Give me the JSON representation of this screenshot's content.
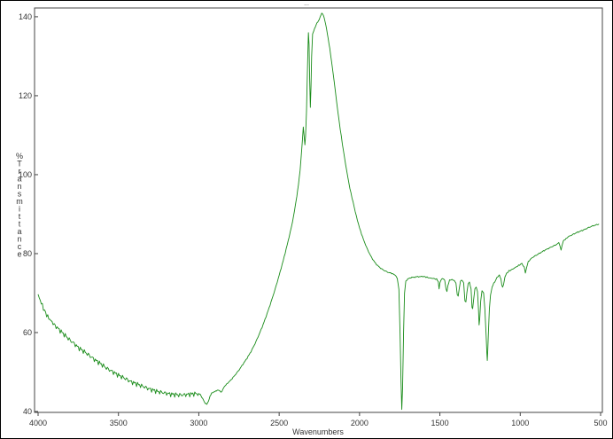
{
  "header": {
    "text": "..."
  },
  "chart_data": {
    "type": "line",
    "title": "",
    "xlabel": "Wavenumbers",
    "ylabel": "%Transmittance",
    "xlim": [
      4000,
      500
    ],
    "ylim": [
      40,
      142
    ],
    "x_ticks": [
      4000,
      3500,
      3000,
      2500,
      2000,
      1500,
      1000,
      500
    ],
    "y_ticks": [
      40,
      60,
      80,
      100,
      120,
      140
    ],
    "grid": false,
    "legend": "none",
    "series": [
      {
        "color": "#1a8c1a",
        "points": [
          [
            4000,
            69.5
          ],
          [
            3980,
            67.5
          ],
          [
            3960,
            65.5
          ],
          [
            3940,
            64.0
          ],
          [
            3920,
            63.0
          ],
          [
            3900,
            62.0
          ],
          [
            3875,
            61.0
          ],
          [
            3850,
            60.0
          ],
          [
            3825,
            59.0
          ],
          [
            3800,
            58.0
          ],
          [
            3775,
            57.2
          ],
          [
            3750,
            56.2
          ],
          [
            3725,
            55.5
          ],
          [
            3700,
            54.8
          ],
          [
            3675,
            54.0
          ],
          [
            3650,
            53.2
          ],
          [
            3625,
            52.5
          ],
          [
            3600,
            51.8
          ],
          [
            3575,
            51.0
          ],
          [
            3550,
            50.4
          ],
          [
            3525,
            49.8
          ],
          [
            3500,
            49.2
          ],
          [
            3475,
            48.7
          ],
          [
            3450,
            48.2
          ],
          [
            3425,
            47.6
          ],
          [
            3400,
            47.2
          ],
          [
            3375,
            46.8
          ],
          [
            3350,
            46.4
          ],
          [
            3325,
            46.0
          ],
          [
            3300,
            45.6
          ],
          [
            3275,
            45.3
          ],
          [
            3250,
            45.0
          ],
          [
            3225,
            44.8
          ],
          [
            3200,
            44.6
          ],
          [
            3175,
            44.4
          ],
          [
            3150,
            44.3
          ],
          [
            3125,
            44.2
          ],
          [
            3100,
            44.2
          ],
          [
            3075,
            44.3
          ],
          [
            3050,
            44.4
          ],
          [
            3025,
            44.5
          ],
          [
            3000,
            44.5
          ],
          [
            2990,
            44.2
          ],
          [
            2975,
            43.2
          ],
          [
            2960,
            42.0
          ],
          [
            2950,
            41.8
          ],
          [
            2940,
            42.5
          ],
          [
            2930,
            43.8
          ],
          [
            2920,
            44.6
          ],
          [
            2910,
            44.8
          ],
          [
            2900,
            45.0
          ],
          [
            2890,
            45.2
          ],
          [
            2880,
            45.4
          ],
          [
            2870,
            45.2
          ],
          [
            2860,
            44.8
          ],
          [
            2850,
            45.6
          ],
          [
            2840,
            46.4
          ],
          [
            2820,
            47.2
          ],
          [
            2800,
            48.0
          ],
          [
            2775,
            49.2
          ],
          [
            2750,
            50.5
          ],
          [
            2725,
            52.0
          ],
          [
            2700,
            53.5
          ],
          [
            2675,
            55.2
          ],
          [
            2650,
            57.2
          ],
          [
            2625,
            59.5
          ],
          [
            2600,
            62.0
          ],
          [
            2575,
            64.8
          ],
          [
            2550,
            67.8
          ],
          [
            2525,
            71.0
          ],
          [
            2500,
            74.5
          ],
          [
            2475,
            78.2
          ],
          [
            2450,
            82.2
          ],
          [
            2425,
            86.5
          ],
          [
            2410,
            89.5
          ],
          [
            2400,
            92.0
          ],
          [
            2390,
            94.5
          ],
          [
            2380,
            97.5
          ],
          [
            2370,
            101.0
          ],
          [
            2362,
            105.0
          ],
          [
            2355,
            109.0
          ],
          [
            2350,
            112.0
          ],
          [
            2345,
            110.0
          ],
          [
            2340,
            107.5
          ],
          [
            2336,
            109.5
          ],
          [
            2330,
            116.0
          ],
          [
            2326,
            123.0
          ],
          [
            2322,
            130.0
          ],
          [
            2318,
            136.0
          ],
          [
            2314,
            133.0
          ],
          [
            2310,
            124.0
          ],
          [
            2306,
            117.0
          ],
          [
            2302,
            122.0
          ],
          [
            2298,
            130.0
          ],
          [
            2292,
            135.5
          ],
          [
            2285,
            136.5
          ],
          [
            2275,
            137.5
          ],
          [
            2265,
            138.5
          ],
          [
            2255,
            139.0
          ],
          [
            2245,
            140.0
          ],
          [
            2235,
            141.0
          ],
          [
            2225,
            140.5
          ],
          [
            2215,
            139.0
          ],
          [
            2205,
            137.0
          ],
          [
            2195,
            134.5
          ],
          [
            2185,
            132.0
          ],
          [
            2175,
            129.0
          ],
          [
            2165,
            126.0
          ],
          [
            2150,
            121.0
          ],
          [
            2135,
            116.0
          ],
          [
            2120,
            111.5
          ],
          [
            2100,
            106.0
          ],
          [
            2080,
            101.0
          ],
          [
            2060,
            96.5
          ],
          [
            2040,
            93.0
          ],
          [
            2020,
            89.5
          ],
          [
            2000,
            86.5
          ],
          [
            1975,
            83.5
          ],
          [
            1950,
            81.0
          ],
          [
            1925,
            79.0
          ],
          [
            1900,
            77.5
          ],
          [
            1875,
            76.5
          ],
          [
            1850,
            75.8
          ],
          [
            1825,
            75.3
          ],
          [
            1800,
            75.0
          ],
          [
            1780,
            74.6
          ],
          [
            1765,
            73.8
          ],
          [
            1755,
            71.0
          ],
          [
            1748,
            60.0
          ],
          [
            1742,
            48.0
          ],
          [
            1737,
            40.5
          ],
          [
            1732,
            46.0
          ],
          [
            1726,
            60.0
          ],
          [
            1720,
            70.0
          ],
          [
            1712,
            73.0
          ],
          [
            1700,
            73.6
          ],
          [
            1680,
            73.9
          ],
          [
            1650,
            74.1
          ],
          [
            1620,
            74.2
          ],
          [
            1600,
            74.2
          ],
          [
            1580,
            74.0
          ],
          [
            1560,
            73.8
          ],
          [
            1540,
            73.7
          ],
          [
            1520,
            73.5
          ],
          [
            1510,
            72.8
          ],
          [
            1505,
            71.0
          ],
          [
            1500,
            72.5
          ],
          [
            1490,
            73.5
          ],
          [
            1480,
            73.6
          ],
          [
            1470,
            73.2
          ],
          [
            1462,
            71.0
          ],
          [
            1456,
            70.4
          ],
          [
            1450,
            71.8
          ],
          [
            1440,
            73.3
          ],
          [
            1425,
            73.4
          ],
          [
            1410,
            73.2
          ],
          [
            1400,
            72.5
          ],
          [
            1392,
            69.5
          ],
          [
            1386,
            69.2
          ],
          [
            1380,
            71.0
          ],
          [
            1372,
            73.0
          ],
          [
            1362,
            73.2
          ],
          [
            1352,
            72.5
          ],
          [
            1344,
            68.0
          ],
          [
            1338,
            67.8
          ],
          [
            1332,
            70.0
          ],
          [
            1324,
            72.5
          ],
          [
            1316,
            72.8
          ],
          [
            1306,
            71.0
          ],
          [
            1300,
            66.5
          ],
          [
            1296,
            66.0
          ],
          [
            1290,
            68.5
          ],
          [
            1282,
            71.0
          ],
          [
            1274,
            71.5
          ],
          [
            1266,
            70.5
          ],
          [
            1260,
            66.0
          ],
          [
            1256,
            62.0
          ],
          [
            1252,
            63.5
          ],
          [
            1246,
            68.0
          ],
          [
            1238,
            70.5
          ],
          [
            1228,
            70.0
          ],
          [
            1220,
            66.0
          ],
          [
            1216,
            62.5
          ],
          [
            1212,
            59.0
          ],
          [
            1208,
            55.0
          ],
          [
            1205,
            53.0
          ],
          [
            1202,
            55.5
          ],
          [
            1198,
            60.0
          ],
          [
            1192,
            66.0
          ],
          [
            1185,
            69.5
          ],
          [
            1175,
            71.5
          ],
          [
            1165,
            72.5
          ],
          [
            1155,
            73.0
          ],
          [
            1145,
            74.0
          ],
          [
            1130,
            74.5
          ],
          [
            1120,
            73.5
          ],
          [
            1115,
            72.0
          ],
          [
            1110,
            71.5
          ],
          [
            1104,
            72.0
          ],
          [
            1095,
            74.0
          ],
          [
            1085,
            75.0
          ],
          [
            1070,
            75.6
          ],
          [
            1050,
            76.0
          ],
          [
            1030,
            76.5
          ],
          [
            1010,
            77.0
          ],
          [
            990,
            77.5
          ],
          [
            975,
            76.5
          ],
          [
            968,
            75.2
          ],
          [
            960,
            76.5
          ],
          [
            950,
            78.0
          ],
          [
            925,
            79.0
          ],
          [
            900,
            79.6
          ],
          [
            875,
            80.2
          ],
          [
            850,
            80.8
          ],
          [
            825,
            81.3
          ],
          [
            800,
            81.8
          ],
          [
            775,
            82.3
          ],
          [
            760,
            82.8
          ],
          [
            752,
            81.8
          ],
          [
            746,
            81.0
          ],
          [
            740,
            82.0
          ],
          [
            732,
            83.3
          ],
          [
            715,
            83.8
          ],
          [
            700,
            84.3
          ],
          [
            675,
            84.8
          ],
          [
            650,
            85.3
          ],
          [
            625,
            85.7
          ],
          [
            600,
            86.1
          ],
          [
            575,
            86.6
          ],
          [
            550,
            87.0
          ],
          [
            525,
            87.3
          ],
          [
            510,
            87.5
          ]
        ]
      }
    ]
  }
}
